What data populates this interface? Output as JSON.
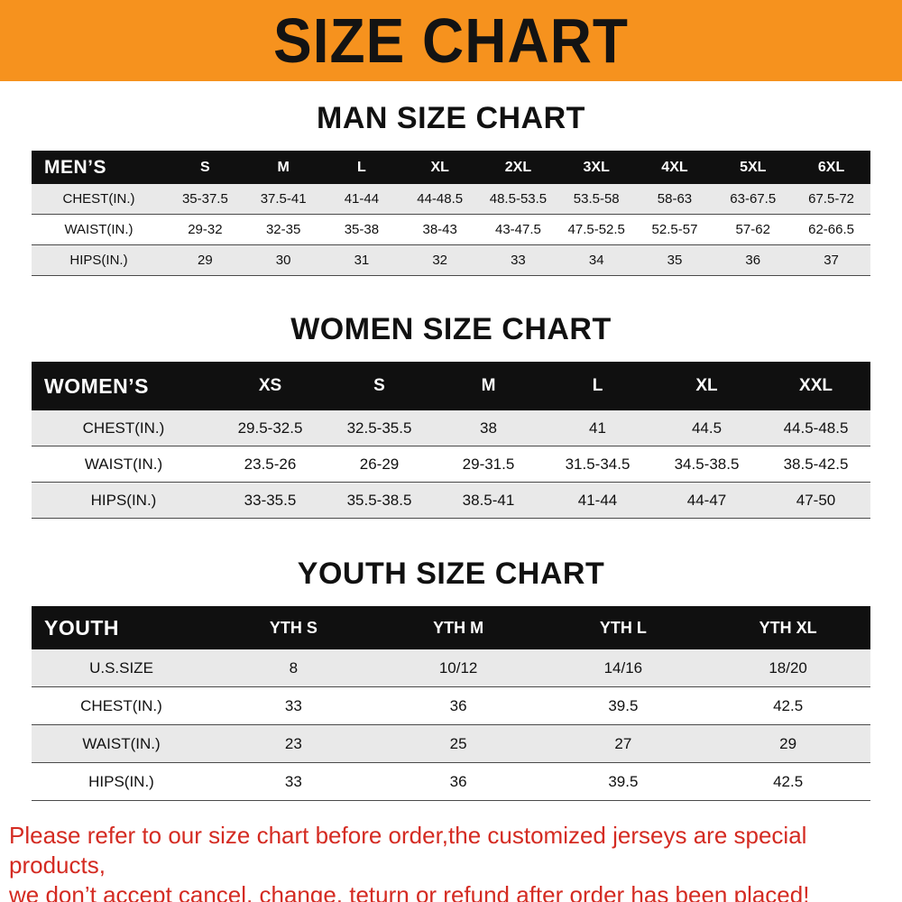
{
  "banner": {
    "title": "SIZE CHART",
    "bg_color": "#F6921E",
    "text_color": "#131313"
  },
  "chart_data": [
    {
      "type": "table",
      "title": "MAN SIZE CHART",
      "corner_label": "MEN’S",
      "columns": [
        "S",
        "M",
        "L",
        "XL",
        "2XL",
        "3XL",
        "4XL",
        "5XL",
        "6XL"
      ],
      "rows": [
        {
          "label": "CHEST(IN.)",
          "values": [
            "35-37.5",
            "37.5-41",
            "41-44",
            "44-48.5",
            "48.5-53.5",
            "53.5-58",
            "58-63",
            "63-67.5",
            "67.5-72"
          ]
        },
        {
          "label": "WAIST(IN.)",
          "values": [
            "29-32",
            "32-35",
            "35-38",
            "38-43",
            "43-47.5",
            "47.5-52.5",
            "52.5-57",
            "57-62",
            "62-66.5"
          ]
        },
        {
          "label": "HIPS(IN.)",
          "values": [
            "29",
            "30",
            "31",
            "32",
            "33",
            "34",
            "35",
            "36",
            "37"
          ]
        }
      ]
    },
    {
      "type": "table",
      "title": "WOMEN SIZE CHART",
      "corner_label": "WOMEN’S",
      "columns": [
        "XS",
        "S",
        "M",
        "L",
        "XL",
        "XXL"
      ],
      "rows": [
        {
          "label": "CHEST(IN.)",
          "values": [
            "29.5-32.5",
            "32.5-35.5",
            "38",
            "41",
            "44.5",
            "44.5-48.5"
          ]
        },
        {
          "label": "WAIST(IN.)",
          "values": [
            "23.5-26",
            "26-29",
            "29-31.5",
            "31.5-34.5",
            "34.5-38.5",
            "38.5-42.5"
          ]
        },
        {
          "label": "HIPS(IN.)",
          "values": [
            "33-35.5",
            "35.5-38.5",
            "38.5-41",
            "41-44",
            "44-47",
            "47-50"
          ]
        }
      ]
    },
    {
      "type": "table",
      "title": "YOUTH SIZE CHART",
      "corner_label": "YOUTH",
      "columns": [
        "YTH S",
        "YTH M",
        "YTH L",
        "YTH XL"
      ],
      "rows": [
        {
          "label": "U.S.SIZE",
          "values": [
            "8",
            "10/12",
            "14/16",
            "18/20"
          ]
        },
        {
          "label": "CHEST(IN.)",
          "values": [
            "33",
            "36",
            "39.5",
            "42.5"
          ]
        },
        {
          "label": "WAIST(IN.)",
          "values": [
            "23",
            "25",
            "27",
            "29"
          ]
        },
        {
          "label": "HIPS(IN.)",
          "values": [
            "33",
            "36",
            "39.5",
            "42.5"
          ]
        }
      ]
    }
  ],
  "footer": {
    "line1": "Please refer to our size chart before order,the customized jerseys are special products,",
    "line2": "we don’t accept cancel, change, teturn or refund after order has been placed!",
    "text_color": "#D42B22"
  }
}
